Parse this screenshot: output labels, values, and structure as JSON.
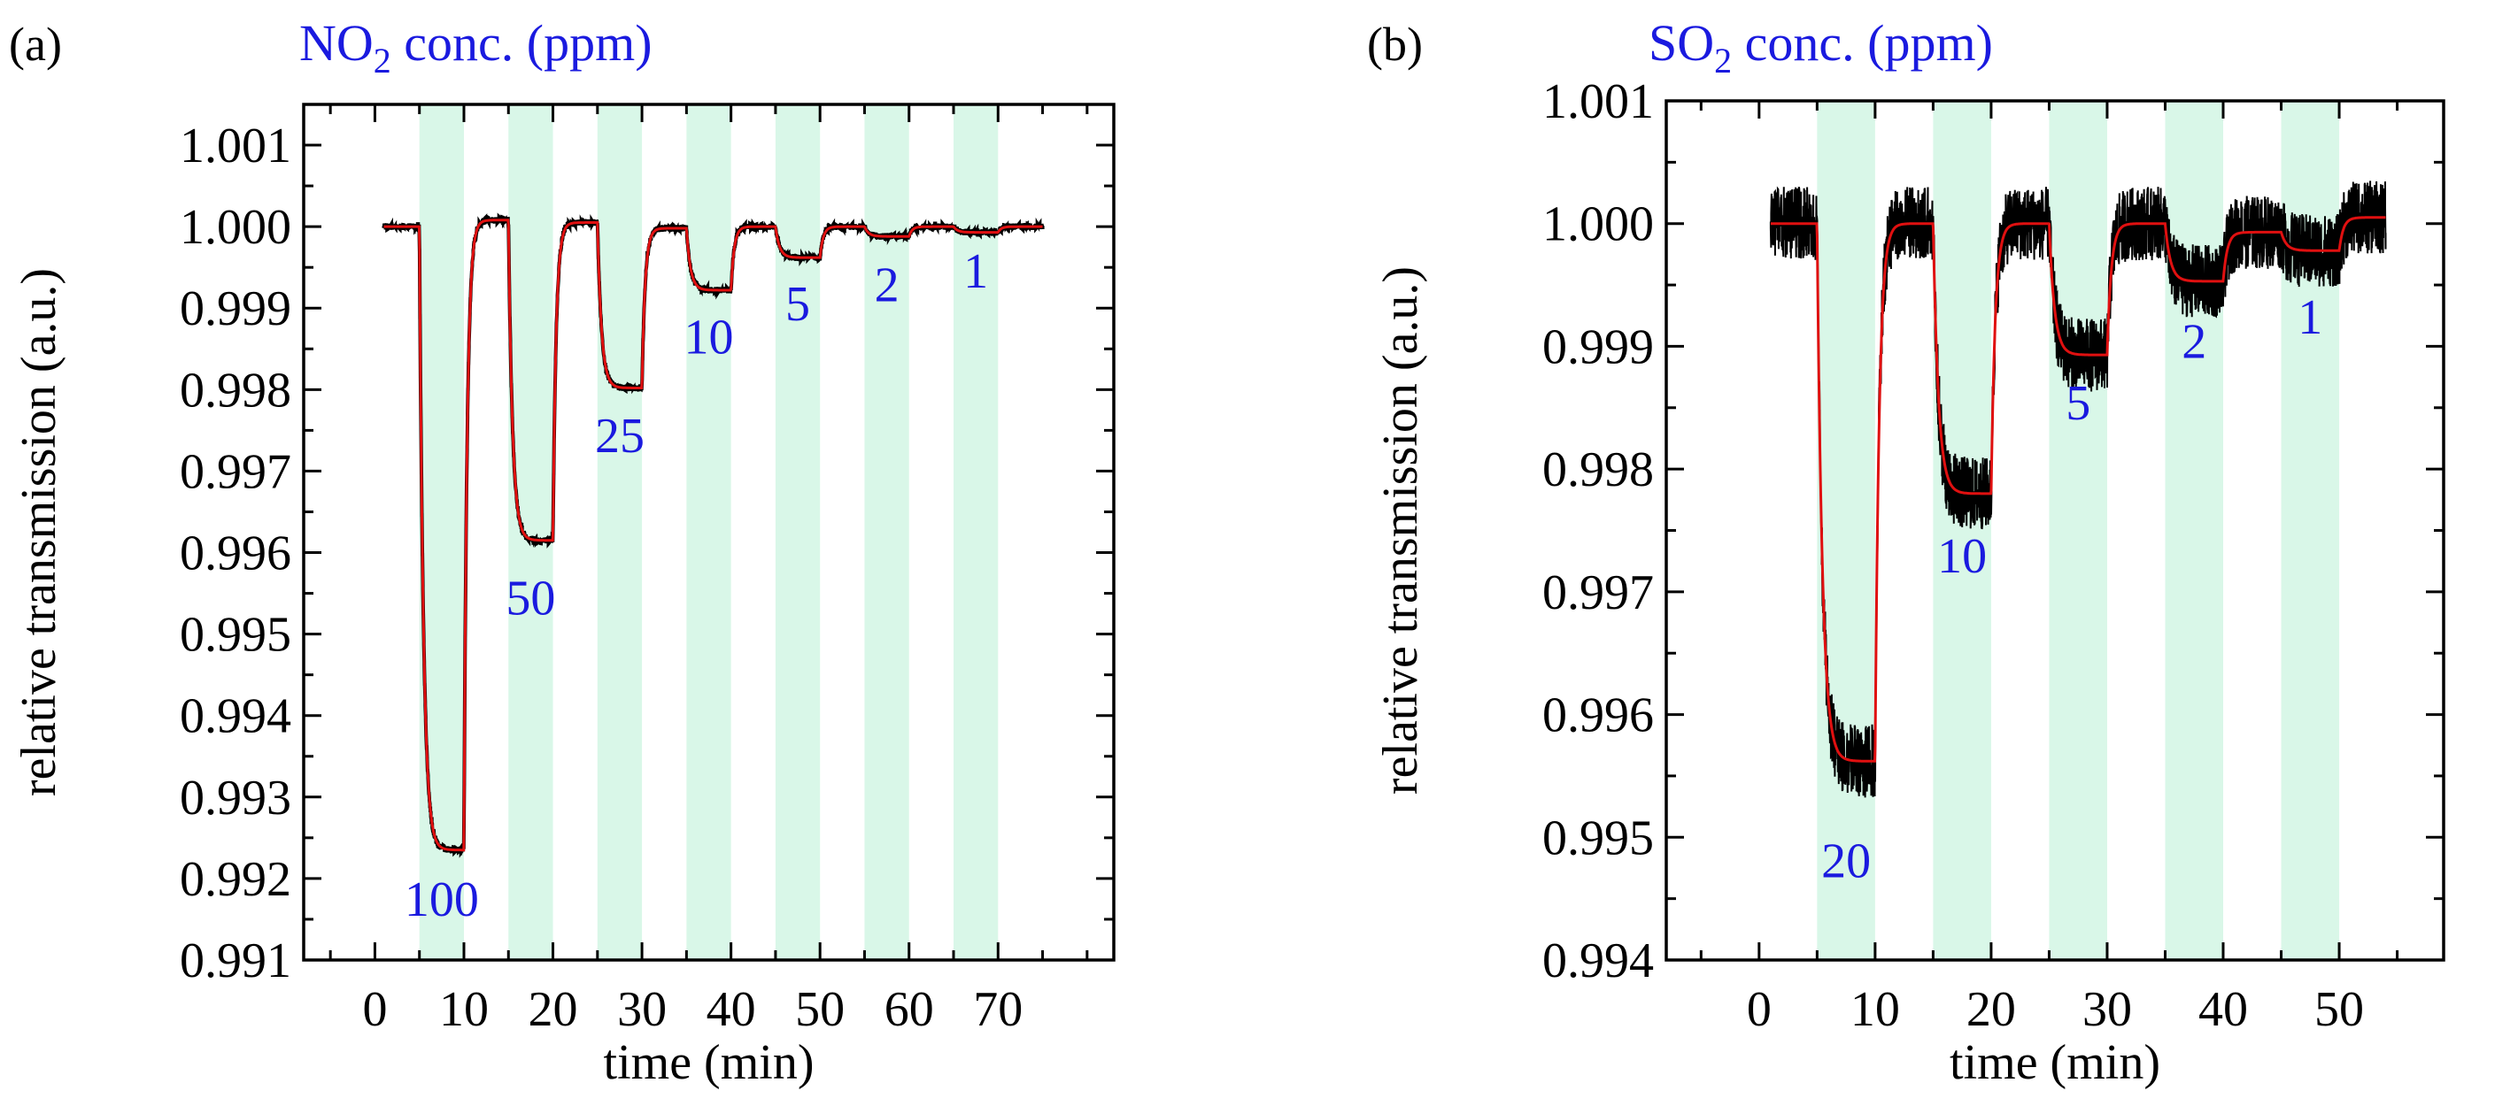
{
  "chart_data": [
    {
      "type": "line",
      "panel_label": "(a)",
      "title": "NO₂ conc. (ppm)",
      "title_parts": {
        "base": "NO",
        "sub": "2",
        "rest": " conc. (ppm)"
      },
      "xlabel": "time (min)",
      "ylabel": "relative transmission (a.u.)",
      "xlim": [
        -8,
        83
      ],
      "ylim": [
        0.991,
        1.0015
      ],
      "xticks": [
        0,
        10,
        20,
        30,
        40,
        50,
        60,
        70
      ],
      "xtick_labels": [
        "0",
        "10",
        "20",
        "30",
        "40",
        "50",
        "60",
        "70"
      ],
      "yticks": [
        0.991,
        0.992,
        0.993,
        0.994,
        0.995,
        0.996,
        0.997,
        0.998,
        0.999,
        1.0,
        1.001
      ],
      "ytick_labels": [
        "0.991",
        "0.992",
        "0.993",
        "0.994",
        "0.995",
        "0.996",
        "0.997",
        "0.998",
        "0.999",
        "1.000",
        "1.001"
      ],
      "shade_color": "#d9f7e8",
      "gas_windows": [
        [
          5,
          10
        ],
        [
          15,
          20
        ],
        [
          25,
          30
        ],
        [
          35,
          40
        ],
        [
          45,
          50
        ],
        [
          55,
          60
        ],
        [
          65,
          70
        ]
      ],
      "concentrations": [
        {
          "label": "100",
          "x": 7.5,
          "y": 0.99176
        },
        {
          "label": "50",
          "x": 17.5,
          "y": 0.99546
        },
        {
          "label": "25",
          "x": 27.5,
          "y": 0.99745
        },
        {
          "label": "10",
          "x": 37.5,
          "y": 0.99866
        },
        {
          "label": "5",
          "x": 47.5,
          "y": 0.99907
        },
        {
          "label": "2",
          "x": 57.5,
          "y": 0.9993
        },
        {
          "label": "1",
          "x": 67.5,
          "y": 0.99947
        }
      ],
      "baseline": 1.0,
      "x_start": 1,
      "x_end": 75,
      "steps": [
        {
          "start": 5,
          "end": 10,
          "level": 0.99235,
          "recovery": 1.00008
        },
        {
          "start": 15,
          "end": 20,
          "level": 0.99615,
          "recovery": 1.00005
        },
        {
          "start": 25,
          "end": 30,
          "level": 0.99802,
          "recovery": 0.99998
        },
        {
          "start": 35,
          "end": 40,
          "level": 0.99922,
          "recovery": 1.0
        },
        {
          "start": 45,
          "end": 50,
          "level": 0.99962,
          "recovery": 1.0
        },
        {
          "start": 55,
          "end": 60,
          "level": 0.99988,
          "recovery": 1.0
        },
        {
          "start": 65,
          "end": 70,
          "level": 0.99993,
          "recovery": 1.0
        }
      ],
      "noise_band": 4e-05,
      "series": [
        {
          "name": "raw signal",
          "color": "#000000"
        },
        {
          "name": "smoothed signal",
          "color": "#e01010"
        }
      ]
    },
    {
      "type": "line",
      "panel_label": "(b)",
      "title": "SO₂ conc. (ppm)",
      "title_parts": {
        "base": "SO",
        "sub": "2",
        "rest": " conc. (ppm)"
      },
      "xlabel": "time (min)",
      "ylabel": "relative transmission (a.u.)",
      "xlim": [
        -8,
        59
      ],
      "ylim": [
        0.994,
        1.001
      ],
      "xticks": [
        0,
        10,
        20,
        30,
        40,
        50
      ],
      "xtick_labels": [
        "0",
        "10",
        "20",
        "30",
        "40",
        "50"
      ],
      "yticks": [
        0.994,
        0.995,
        0.996,
        0.997,
        0.998,
        0.999,
        1.0,
        1.001
      ],
      "ytick_labels": [
        "0.994",
        "0.995",
        "0.996",
        "0.997",
        "0.998",
        "0.999",
        "1.000",
        "1.001"
      ],
      "shade_color": "#d9f7e8",
      "gas_windows": [
        [
          5,
          10
        ],
        [
          15,
          20
        ],
        [
          25,
          30
        ],
        [
          35,
          40
        ],
        [
          45,
          50
        ]
      ],
      "concentrations": [
        {
          "label": "20",
          "x": 7.5,
          "y": 0.99482
        },
        {
          "label": "10",
          "x": 17.5,
          "y": 0.9973
        },
        {
          "label": "5",
          "x": 27.5,
          "y": 0.99855
        },
        {
          "label": "2",
          "x": 37.5,
          "y": 0.99905
        },
        {
          "label": "1",
          "x": 47.5,
          "y": 0.99925
        }
      ],
      "baseline": 1.0,
      "x_start": 1,
      "x_end": 54,
      "steps": [
        {
          "start": 5,
          "end": 10,
          "level": 0.99562,
          "recovery": 1.0
        },
        {
          "start": 15,
          "end": 20,
          "level": 0.9978,
          "recovery": 1.0
        },
        {
          "start": 25,
          "end": 30,
          "level": 0.99893,
          "recovery": 1.0
        },
        {
          "start": 35,
          "end": 40,
          "level": 0.99953,
          "recovery": 0.99993
        },
        {
          "start": 45,
          "end": 50,
          "level": 0.99978,
          "recovery": 1.00005
        }
      ],
      "noise_band": 0.0003,
      "series": [
        {
          "name": "raw signal",
          "color": "#000000"
        },
        {
          "name": "smoothed signal",
          "color": "#e01010"
        }
      ]
    }
  ]
}
